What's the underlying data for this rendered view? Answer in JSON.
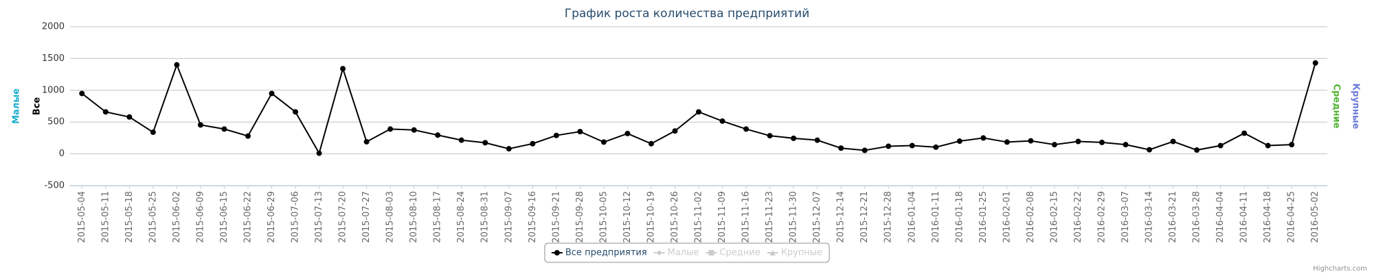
{
  "chart_data": {
    "type": "line",
    "title": "График роста количества предприятий",
    "categories": [
      "2015-05-04",
      "2015-05-11",
      "2015-05-18",
      "2015-05-25",
      "2015-06-02",
      "2015-06-09",
      "2015-06-15",
      "2015-06-22",
      "2015-06-29",
      "2015-07-06",
      "2015-07-13",
      "2015-07-20",
      "2015-07-27",
      "2015-08-03",
      "2015-08-10",
      "2015-08-17",
      "2015-08-24",
      "2015-08-31",
      "2015-09-07",
      "2015-09-16",
      "2015-09-21",
      "2015-09-28",
      "2015-10-05",
      "2015-10-12",
      "2015-10-19",
      "2015-10-26",
      "2015-11-02",
      "2015-11-09",
      "2015-11-16",
      "2015-11-23",
      "2015-11-30",
      "2015-12-07",
      "2015-12-14",
      "2015-12-21",
      "2015-12-28",
      "2016-01-04",
      "2016-01-11",
      "2016-01-18",
      "2016-01-25",
      "2016-02-01",
      "2016-02-08",
      "2016-02-15",
      "2016-02-22",
      "2016-02-29",
      "2016-03-07",
      "2016-03-14",
      "2016-03-21",
      "2016-03-28",
      "2016-04-04",
      "2016-04-11",
      "2016-04-18",
      "2016-04-25",
      "2016-05-02"
    ],
    "series": [
      {
        "name": "Все предприятия",
        "color": "#000000",
        "visible": true,
        "values": [
          950,
          660,
          580,
          340,
          1400,
          455,
          390,
          280,
          950,
          660,
          10,
          1340,
          190,
          390,
          375,
          295,
          215,
          175,
          80,
          160,
          290,
          350,
          185,
          320,
          160,
          360,
          660,
          515,
          390,
          285,
          245,
          215,
          90,
          55,
          120,
          130,
          105,
          200,
          250,
          185,
          205,
          145,
          195,
          180,
          145,
          65,
          195,
          60,
          130,
          325,
          130,
          145,
          1430
        ]
      },
      {
        "name": "Малые",
        "color": "#cccccc",
        "visible": false
      },
      {
        "name": "Средние",
        "color": "#cccccc",
        "visible": false
      },
      {
        "name": "Крупные",
        "color": "#cccccc",
        "visible": false
      }
    ],
    "axis_titles": [
      {
        "text": "Малые",
        "color": "#1aadce",
        "side": "left"
      },
      {
        "text": "Все",
        "color": "#000000",
        "side": "left"
      },
      {
        "text": "Средние",
        "color": "#50b432",
        "side": "right"
      },
      {
        "text": "Крупные",
        "color": "#6b7bd6",
        "side": "right"
      }
    ],
    "ylim": [
      -500,
      2000
    ],
    "yticks": [
      -500,
      0,
      500,
      1000,
      1500,
      2000
    ],
    "grid": true,
    "credit": "Highcharts.com"
  }
}
